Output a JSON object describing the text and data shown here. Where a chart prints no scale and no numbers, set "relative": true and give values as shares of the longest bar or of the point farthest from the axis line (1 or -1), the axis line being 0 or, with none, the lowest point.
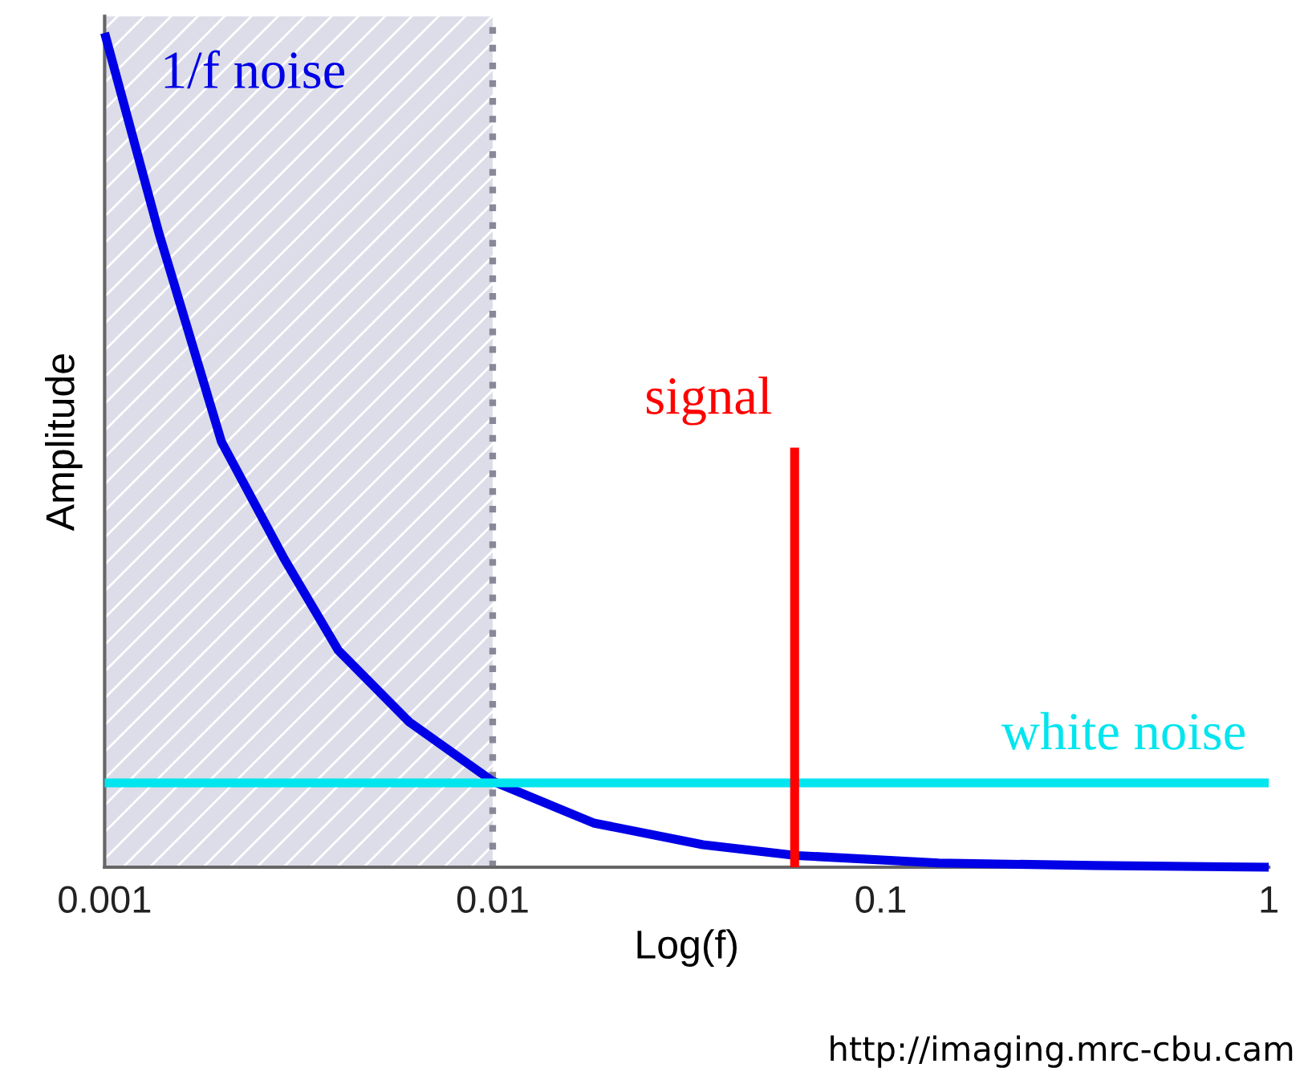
{
  "chart_data": {
    "type": "line",
    "xlabel": "Log(f)",
    "ylabel": "Amplitude",
    "relative": true,
    "log": "x",
    "xlim": [
      0.001,
      1
    ],
    "xticks": [
      0.001,
      0.01,
      0.1,
      1
    ],
    "grid": false,
    "legend": false,
    "series": [
      {
        "name": "1/f noise",
        "color": "#0000e6",
        "x": [
          0.001,
          0.00138,
          0.002,
          0.0029,
          0.004,
          0.0061,
          0.01,
          0.0182,
          0.0348,
          0.0607,
          0.141,
          0.355,
          1
        ],
        "values": [
          1,
          0.76,
          0.51,
          0.37,
          0.26,
          0.174,
          0.103,
          0.053,
          0.027,
          0.014,
          0.005,
          0.002,
          0
        ]
      },
      {
        "name": "white noise",
        "color": "#00e5ee",
        "x": [
          0.001,
          1
        ],
        "values": [
          0.101,
          0.101
        ]
      },
      {
        "name": "signal",
        "color": "#ff0000",
        "x": [
          0.06,
          0.06
        ],
        "values": [
          0,
          0.503
        ]
      }
    ],
    "bands": [
      {
        "axis": "x",
        "from": 0.001,
        "to": 0.01,
        "color": "#dcdde8"
      }
    ],
    "ref_lines": [
      {
        "axis": "x",
        "value": 0.01,
        "color": "#888899",
        "line_style": "dotted"
      }
    ],
    "annotations": [
      "http://imaging.mrc-cbu.cam"
    ]
  }
}
